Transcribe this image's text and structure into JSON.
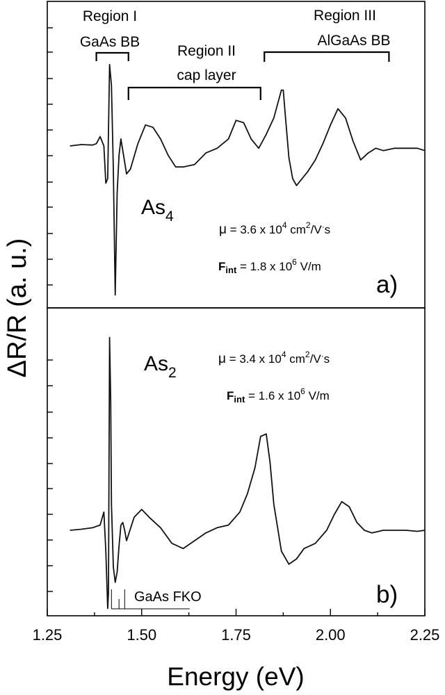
{
  "chart_data": [
    {
      "panel": "a)",
      "type": "line",
      "ylabel": "ΔR/R (a. u.)",
      "sample": "As",
      "sample_sub": "4",
      "mobility": {
        "mu": "μ",
        "value": " = 3.6 x 10",
        "exp": "4",
        "unit": " cm",
        "unit_exp": "2",
        "unit_end": "/V",
        "dot": "·",
        "unit_s": "s"
      },
      "field": {
        "F": "F",
        "sub": "int",
        "value": " = 1.8 x 10",
        "exp": "6",
        "unit": " V/m"
      },
      "regions": [
        {
          "label1": "Region I",
          "label2": "GaAs BB",
          "x_range": [
            1.38,
            1.465
          ]
        },
        {
          "label1": "Region II",
          "label2": "cap layer",
          "x_range": [
            1.465,
            1.815
          ]
        },
        {
          "label1": "Region III",
          "label2": "AlGaAs BB",
          "x_range": [
            1.825,
            2.155
          ]
        }
      ],
      "series": [
        {
          "x": [
            1.31,
            1.34,
            1.37,
            1.38,
            1.39,
            1.4,
            1.405,
            1.41,
            1.415,
            1.42,
            1.425,
            1.43,
            1.435,
            1.44,
            1.445,
            1.45,
            1.46,
            1.47,
            1.49,
            1.51,
            1.53,
            1.55,
            1.57,
            1.59,
            1.61,
            1.64,
            1.67,
            1.7,
            1.73,
            1.75,
            1.77,
            1.79,
            1.81,
            1.83,
            1.85,
            1.87,
            1.875,
            1.88,
            1.89,
            1.9,
            1.91,
            1.92,
            1.94,
            1.96,
            1.98,
            2.0,
            2.02,
            2.04,
            2.06,
            2.08,
            2.1,
            2.12,
            2.14,
            2.17,
            2.2,
            2.23,
            2.25
          ],
          "y": [
            0.0,
            0.03,
            0.02,
            0.05,
            0.2,
            0.0,
            -0.8,
            -0.7,
            1.75,
            1.3,
            -0.5,
            -3.2,
            -1.0,
            -0.2,
            0.15,
            -0.1,
            -0.6,
            -0.5,
            0.05,
            0.45,
            0.4,
            0.15,
            -0.2,
            -0.45,
            -0.45,
            -0.4,
            -0.15,
            -0.05,
            0.15,
            0.55,
            0.5,
            0.15,
            -0.05,
            0.25,
            0.6,
            1.2,
            1.2,
            0.7,
            -0.25,
            -0.7,
            -0.85,
            -0.75,
            -0.55,
            -0.3,
            0.05,
            0.45,
            0.8,
            0.6,
            0.1,
            -0.3,
            -0.15,
            -0.05,
            -0.1,
            -0.05,
            -0.05,
            -0.05,
            -0.1
          ]
        }
      ]
    },
    {
      "panel": "b)",
      "type": "line",
      "xlabel": "Energy (eV)",
      "xlim": [
        1.25,
        2.25
      ],
      "xticks": [
        "1.25",
        "1.50",
        "1.75",
        "2.00",
        "2.25"
      ],
      "sample": "As",
      "sample_sub": "2",
      "mobility": {
        "mu": "μ",
        "value": " = 3.4 x 10",
        "exp": "4",
        "unit": " cm",
        "unit_exp": "2",
        "unit_end": "/V",
        "dot": "·",
        "unit_s": "s"
      },
      "field": {
        "F": "F",
        "sub": "int",
        "value": " = 1.6 x 10",
        "exp": "6",
        "unit": " V/m"
      },
      "fko_label": "GaAs FKO",
      "fko_lines_x": [
        1.42,
        1.44,
        1.455
      ],
      "series": [
        {
          "x": [
            1.31,
            1.34,
            1.37,
            1.39,
            1.4,
            1.405,
            1.41,
            1.412,
            1.415,
            1.418,
            1.42,
            1.425,
            1.43,
            1.435,
            1.44,
            1.445,
            1.45,
            1.455,
            1.46,
            1.48,
            1.5,
            1.52,
            1.55,
            1.58,
            1.61,
            1.64,
            1.67,
            1.7,
            1.73,
            1.76,
            1.78,
            1.8,
            1.815,
            1.83,
            1.84,
            1.85,
            1.87,
            1.89,
            1.91,
            1.93,
            1.96,
            1.99,
            2.01,
            2.03,
            2.05,
            2.07,
            2.09,
            2.11,
            2.14,
            2.17,
            2.2,
            2.23,
            2.25
          ],
          "y": [
            0.0,
            0.02,
            0.05,
            0.1,
            0.35,
            -0.4,
            -1.5,
            -1.2,
            3.7,
            2.5,
            0.5,
            -0.7,
            -1.0,
            -0.8,
            -0.3,
            0.1,
            0.15,
            0.0,
            -0.2,
            0.25,
            0.4,
            0.25,
            0.05,
            -0.25,
            -0.35,
            -0.2,
            -0.05,
            0.05,
            0.1,
            0.35,
            0.7,
            1.2,
            1.8,
            1.85,
            1.3,
            0.5,
            -0.4,
            -0.65,
            -0.55,
            -0.35,
            -0.25,
            0.0,
            0.3,
            0.55,
            0.45,
            0.15,
            0.0,
            -0.05,
            0.0,
            0.0,
            0.0,
            -0.02,
            0.0
          ]
        }
      ]
    }
  ]
}
